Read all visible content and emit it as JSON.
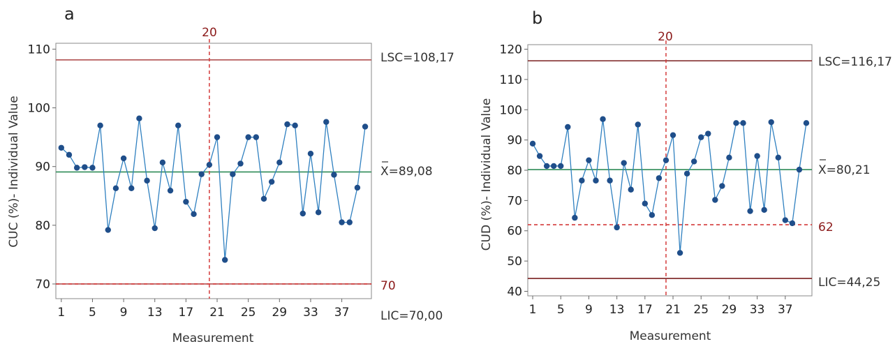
{
  "charts": [
    {
      "panel_letter": "a",
      "ylabel": "CUC (%)- Individual Value",
      "xlabel": "Measurement",
      "vline_label": "20",
      "lsc_label": "LSC=108,17",
      "mean_label": "X=89,08",
      "redline_label": "70",
      "lic_label": "LIC=70,00"
    },
    {
      "panel_letter": "b",
      "ylabel": "CUD (%)- Individual Value",
      "xlabel": "Measurement",
      "vline_label": "20",
      "lsc_label": "LSC=116,17",
      "mean_label": "X=80,21",
      "redline_label": "62",
      "lic_label": "LIC=44,25"
    }
  ],
  "chart_data": [
    {
      "type": "line",
      "title": "a",
      "xlabel": "Measurement",
      "ylabel": "CUC (%)- Individual Value",
      "x": [
        1,
        2,
        3,
        4,
        5,
        6,
        7,
        8,
        9,
        10,
        11,
        12,
        13,
        14,
        15,
        16,
        17,
        18,
        19,
        20,
        21,
        22,
        23,
        24,
        25,
        26,
        27,
        28,
        29,
        30,
        31,
        32,
        33,
        34,
        35,
        36,
        37,
        38,
        39,
        40
      ],
      "xticks": [
        "1",
        "5",
        "9",
        "13",
        "17",
        "21",
        "25",
        "29",
        "33",
        "37"
      ],
      "ylim": [
        67.5,
        111
      ],
      "yticks": [
        70,
        80,
        90,
        100,
        110
      ],
      "series": [
        {
          "values": [
            93.2,
            92.0,
            89.8,
            89.9,
            89.8,
            97.0,
            79.2,
            86.3,
            91.4,
            86.3,
            98.2,
            87.6,
            79.5,
            90.7,
            85.9,
            97.0,
            84.0,
            81.9,
            88.7,
            90.3,
            95.0,
            74.1,
            88.7,
            90.5,
            95.0,
            95.0,
            84.5,
            87.4,
            90.7,
            97.2,
            97.0,
            82.0,
            92.2,
            82.2,
            97.6,
            88.6,
            80.5,
            80.5,
            86.4,
            96.8
          ]
        }
      ],
      "reference_lines": [
        {
          "name": "LSC",
          "value": 108.17,
          "color": "#b05050"
        },
        {
          "name": "X",
          "value": 89.08,
          "color": "#2e8b57"
        },
        {
          "name": "LIC",
          "value": 70.0,
          "color": "#b05050"
        },
        {
          "name": "70",
          "value": 70,
          "color": "#d43a3a",
          "dashed": true
        }
      ],
      "vertical_line": {
        "x": 20,
        "color": "#d43a3a",
        "dashed": true
      },
      "line_color": "#2f80c0",
      "marker_color": "#1f4e8a"
    },
    {
      "type": "line",
      "title": "b",
      "xlabel": "Measurement",
      "ylabel": "CUD (%)- Individual Value",
      "x": [
        1,
        2,
        3,
        4,
        5,
        6,
        7,
        8,
        9,
        10,
        11,
        12,
        13,
        14,
        15,
        16,
        17,
        18,
        19,
        20,
        21,
        22,
        23,
        24,
        25,
        26,
        27,
        28,
        29,
        30,
        31,
        32,
        33,
        34,
        35,
        36,
        37,
        38,
        39,
        40
      ],
      "xticks": [
        "1",
        "5",
        "9",
        "13",
        "17",
        "21",
        "25",
        "29",
        "33",
        "37"
      ],
      "ylim": [
        38.5,
        121.5
      ],
      "yticks": [
        40,
        50,
        60,
        70,
        80,
        90,
        100,
        110,
        120
      ],
      "series": [
        {
          "values": [
            88.8,
            84.7,
            81.4,
            81.4,
            81.4,
            94.3,
            64.3,
            76.6,
            83.3,
            76.6,
            96.9,
            76.6,
            61.1,
            82.4,
            73.6,
            95.1,
            69.0,
            65.2,
            77.4,
            83.3,
            91.6,
            52.7,
            78.9,
            82.9,
            90.9,
            92.1,
            70.2,
            74.8,
            84.2,
            95.6,
            95.6,
            66.5,
            84.7,
            66.9,
            95.9,
            84.2,
            63.5,
            62.5,
            80.2,
            95.6
          ]
        }
      ],
      "reference_lines": [
        {
          "name": "LSC",
          "value": 116.17,
          "color": "#7a1f1f"
        },
        {
          "name": "X",
          "value": 80.21,
          "color": "#2e8b57"
        },
        {
          "name": "LIC",
          "value": 44.25,
          "color": "#7a1f1f"
        },
        {
          "name": "62",
          "value": 62,
          "color": "#d43a3a",
          "dashed": true
        }
      ],
      "vertical_line": {
        "x": 20,
        "color": "#d43a3a",
        "dashed": true
      },
      "line_color": "#2f80c0",
      "marker_color": "#1f4e8a"
    }
  ]
}
